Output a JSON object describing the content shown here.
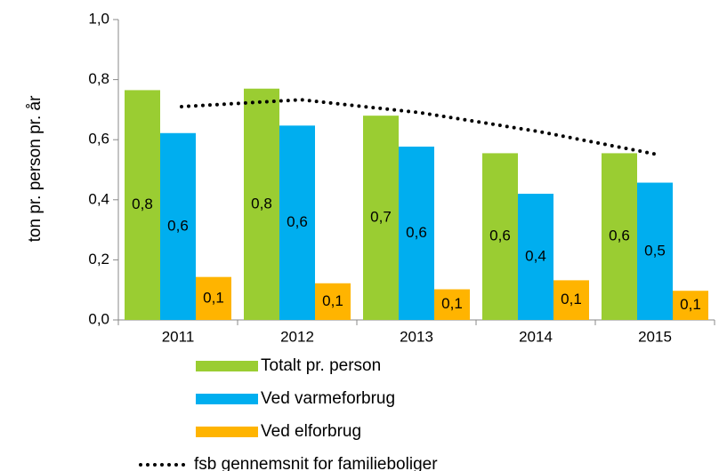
{
  "chart_data": {
    "type": "bar",
    "y_label": "ton pr. person pr. år",
    "categories": [
      "2011",
      "2012",
      "2013",
      "2014",
      "2015"
    ],
    "series": [
      {
        "name": "Totalt pr. person",
        "color": "#9acd32",
        "values": [
          0.765,
          0.77,
          0.68,
          0.555,
          0.555
        ],
        "value_labels": [
          "0,8",
          "0,8",
          "0,7",
          "0,6",
          "0,6"
        ]
      },
      {
        "name": "Ved varmeforbrug",
        "color": "#00aeef",
        "values": [
          0.622,
          0.647,
          0.577,
          0.42,
          0.457
        ],
        "value_labels": [
          "0,6",
          "0,6",
          "0,6",
          "0,4",
          "0,5"
        ]
      },
      {
        "name": "Ved elforbrug",
        "color": "#ffb400",
        "values": [
          0.143,
          0.122,
          0.102,
          0.132,
          0.097
        ],
        "value_labels": [
          "0,1",
          "0,1",
          "0,1",
          "0,1",
          "0,1"
        ]
      },
      {
        "name": "fsb gennemsnit for familieboliger",
        "type": "line",
        "color": "#000000",
        "values": [
          0.71,
          0.733,
          0.69,
          0.627,
          0.55
        ]
      }
    ],
    "ylim": [
      0,
      1
    ],
    "yticks": [
      {
        "value": 0,
        "label": "0,0"
      },
      {
        "value": 0.2,
        "label": "0,2"
      },
      {
        "value": 0.4,
        "label": "0,4"
      },
      {
        "value": 0.6,
        "label": "0,6"
      },
      {
        "value": 0.8,
        "label": "0,8"
      },
      {
        "value": 1,
        "label": "1,0"
      }
    ],
    "grid": false
  }
}
